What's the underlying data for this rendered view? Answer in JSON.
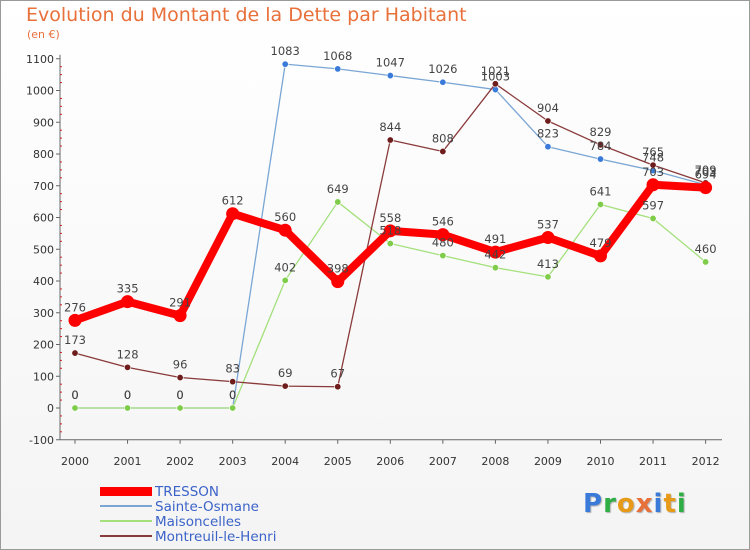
{
  "title": "Evolution du Montant de la Dette par Habitant",
  "unit": "(en €)",
  "logo": {
    "text": "Proxiti",
    "letter_colors": [
      "#3a7ad8",
      "#2fae46",
      "#e79a17",
      "#e8703a",
      "#3a7ad8",
      "#e79a17",
      "#2fae46"
    ]
  },
  "chart_data": {
    "type": "line",
    "title": "Evolution du Montant de la Dette par Habitant",
    "ylabel": "(en €)",
    "xlabel": "",
    "x": [
      "2000",
      "2001",
      "2002",
      "2003",
      "2004",
      "2005",
      "2006",
      "2007",
      "2008",
      "2009",
      "2010",
      "2011",
      "2012"
    ],
    "ylim": [
      -100,
      1100
    ],
    "yticks": [
      -100,
      0,
      100,
      200,
      300,
      400,
      500,
      600,
      700,
      800,
      900,
      1000,
      1100
    ],
    "grid": false,
    "legend_position": "bottom-left",
    "series": [
      {
        "name": "TRESSON",
        "color": "#ff0000",
        "emphasis": "thick",
        "values": [
          276,
          335,
          291,
          612,
          560,
          398,
          558,
          546,
          491,
          537,
          479,
          703,
          694
        ],
        "labels": [
          "276",
          "335",
          "291",
          "612",
          "560",
          "398",
          "558",
          "546",
          "491",
          "537",
          "479",
          "703",
          "694"
        ]
      },
      {
        "name": "Sainte-Osmane",
        "color": "#7aa6d4",
        "dot_color": "#3a7ad8",
        "values": [
          0,
          0,
          0,
          0,
          1083,
          1068,
          1047,
          1026,
          1003,
          823,
          784,
          748,
          703
        ],
        "labels": [
          "0",
          "0",
          "0",
          "0",
          "1083",
          "1068",
          "1047",
          "1026",
          "1003",
          "823",
          "784",
          "748",
          "703"
        ]
      },
      {
        "name": "Maisoncelles",
        "color": "#a4e07c",
        "dot_color": "#7fcc4a",
        "values": [
          0,
          0,
          0,
          0,
          402,
          649,
          518,
          480,
          442,
          413,
          641,
          597,
          460
        ],
        "labels": [
          "0",
          "0",
          "0",
          "0",
          "402",
          "649",
          "518",
          "480",
          "442",
          "413",
          "641",
          "597",
          "460"
        ]
      },
      {
        "name": "Montreuil-le-Henri",
        "color": "#8a3a3a",
        "dot_color": "#6e1c1c",
        "values": [
          173,
          128,
          96,
          83,
          69,
          67,
          844,
          808,
          1021,
          904,
          829,
          765,
          709
        ],
        "labels": [
          "173",
          "128",
          "96",
          "83",
          "69",
          "67",
          "844",
          "808",
          "1021",
          "904",
          "829",
          "765",
          "709"
        ]
      }
    ]
  }
}
